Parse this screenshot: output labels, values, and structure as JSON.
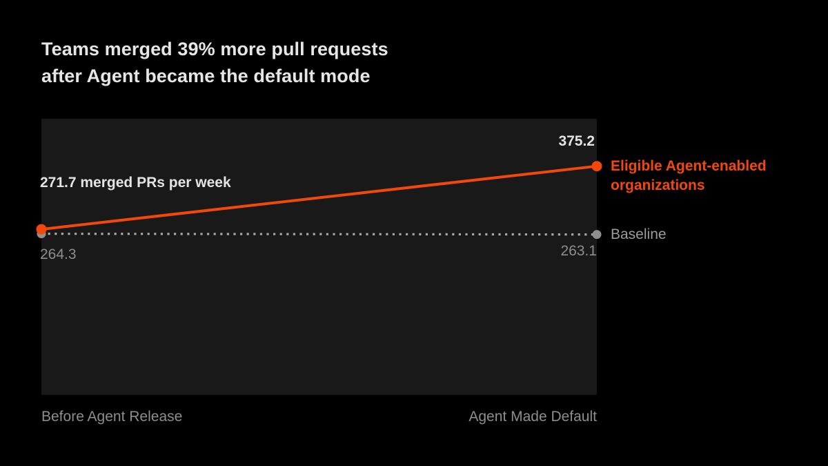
{
  "title": {
    "line1": "Teams merged 39% more pull requests",
    "line2": "after Agent became the default mode"
  },
  "chart_data": {
    "type": "line",
    "categories": [
      "Before Agent Release",
      "Agent Made Default"
    ],
    "series": [
      {
        "id": "agent",
        "name": "Eligible Agent-enabled organizations",
        "values": [
          271.7,
          375.2
        ],
        "color": "#F2490B",
        "dot_color": "#F2490B",
        "style": "solid"
      },
      {
        "id": "baseline",
        "name": "Baseline",
        "values": [
          264.3,
          263.1
        ],
        "color": "#A8A8A8",
        "dot_color": "#8F8F8F",
        "style": "dotted"
      }
    ],
    "ylabel": "merged PRs per week",
    "ylim": [
      0,
      453
    ],
    "grid": false,
    "legend_position": "right",
    "annotations": {
      "agent_start": "271.7 merged PRs per week",
      "agent_end": "375.2",
      "baseline_start": "264.3",
      "baseline_end": "263.1"
    }
  },
  "legend": {
    "agent_line1": "Eligible Agent-enabled",
    "agent_line2": "organizations",
    "baseline": "Baseline"
  },
  "colors": {
    "background": "#000000",
    "plot_background": "#191919",
    "accent_orange": "#F2490B",
    "title_text": "#E6E6E6",
    "muted_text": "#8E8E8E"
  }
}
